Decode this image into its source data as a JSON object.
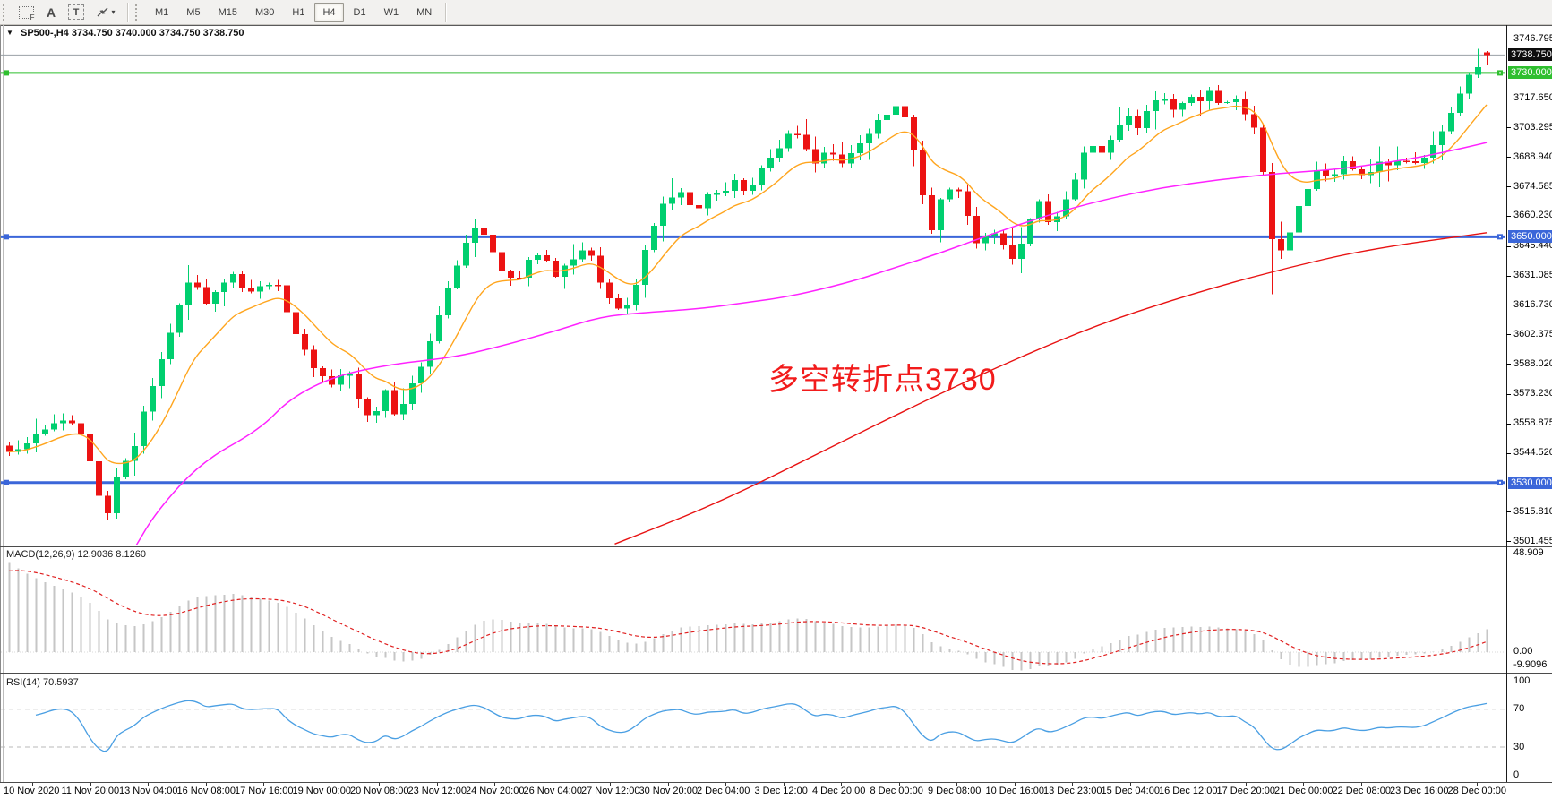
{
  "toolbar": {
    "tools": [
      {
        "id": "grid-f",
        "glyph": "F",
        "name": "grid-f-icon"
      },
      {
        "id": "label-a",
        "glyph": "A",
        "name": "text-label-icon"
      },
      {
        "id": "text-t",
        "glyph": "T",
        "name": "text-box-icon"
      },
      {
        "id": "arrows",
        "glyph": "▾",
        "name": "arrows-tool-icon"
      }
    ],
    "timeframes": [
      "M1",
      "M5",
      "M15",
      "M30",
      "H1",
      "H4",
      "D1",
      "W1",
      "MN"
    ],
    "active_timeframe": "H4"
  },
  "chart": {
    "dropdown_glyph": "▼",
    "title": "SP500-,H4",
    "ohlc_text": "3734.750 3740.000 3734.750 3738.750",
    "annotation": "多空转折点3730",
    "annotation_color": "#f21b1b"
  },
  "price_axis": {
    "ticks": [
      "3746.795",
      "3717.650",
      "3703.295",
      "3688.940",
      "3674.585",
      "3660.230",
      "3645.440",
      "3631.085",
      "3616.730",
      "3602.375",
      "3588.020",
      "3573.230",
      "3558.875",
      "3544.520",
      "3515.810",
      "3501.455"
    ],
    "tags": [
      {
        "label": "3738.750",
        "value": 3738.75,
        "color": "#0d0d0d"
      },
      {
        "label": "3730.000",
        "value": 3730.0,
        "color": "#2fbf2f"
      },
      {
        "label": "3650.000",
        "value": 3650.0,
        "color": "#3b66d9"
      },
      {
        "label": "3530.000",
        "value": 3530.0,
        "color": "#3b66d9"
      }
    ]
  },
  "time_axis": {
    "labels": [
      "10 Nov 2020",
      "11 Nov 20:00",
      "13 Nov 04:00",
      "16 Nov 08:00",
      "17 Nov 16:00",
      "19 Nov 00:00",
      "20 Nov 08:00",
      "23 Nov 12:00",
      "24 Nov 20:00",
      "26 Nov 04:00",
      "27 Nov 12:00",
      "30 Nov 20:00",
      "2 Dec 04:00",
      "3 Dec 12:00",
      "4 Dec 20:00",
      "8 Dec 00:00",
      "9 Dec 08:00",
      "10 Dec 16:00",
      "13 Dec 23:00",
      "15 Dec 04:00",
      "16 Dec 12:00",
      "17 Dec 20:00",
      "21 Dec 00:00",
      "22 Dec 08:00",
      "23 Dec 16:00",
      "28 Dec 00:00"
    ]
  },
  "indicators": {
    "macd": {
      "name": "MACD(12,26,9)",
      "values": "12.9036 8.1260",
      "axis": [
        "48.909",
        "0.00",
        "-9.9096"
      ],
      "axis_max": 48.909,
      "axis_min": -9.9096
    },
    "rsi": {
      "name": "RSI(14)",
      "value": "70.5937",
      "axis": [
        "100",
        "70",
        "30",
        "0"
      ],
      "levels": [
        70,
        30
      ]
    }
  },
  "chart_data": {
    "type": "candlestick",
    "symbol": "SP500-",
    "timeframe": "H4",
    "current": {
      "open": 3734.75,
      "high": 3740.0,
      "low": 3734.75,
      "close": 3738.75
    },
    "last_price": 3738.75,
    "y_axis_top": 3746.795,
    "y_axis_bottom": 3501.455,
    "candle_count": 166,
    "seed": 20201228,
    "levels": [
      {
        "price": 3730.0,
        "color": "#2fbf2f",
        "width": 2
      },
      {
        "price": 3650.0,
        "color": "#3b66d9",
        "width": 3
      },
      {
        "price": 3530.0,
        "color": "#3b66d9",
        "width": 3
      }
    ],
    "colors": {
      "bull": "#00cf6f",
      "bear": "#ec1313",
      "ma_fast": "#ffa51e",
      "ma_mid": "#ff22ff",
      "ma_slow": "#e81212",
      "macd_hist": "#c6c6c6",
      "macd_signal": "#e02020",
      "rsi_line": "#4a9fe3",
      "bid_line": "#9aa0a6",
      "grid_dash": "#b8b8b8"
    },
    "price_path": [
      [
        0.005,
        3545
      ],
      [
        0.017,
        3552
      ],
      [
        0.03,
        3558
      ],
      [
        0.04,
        3561
      ],
      [
        0.05,
        3552
      ],
      [
        0.063,
        3518
      ],
      [
        0.066,
        3512
      ],
      [
        0.074,
        3535
      ],
      [
        0.083,
        3545
      ],
      [
        0.093,
        3568
      ],
      [
        0.103,
        3590
      ],
      [
        0.113,
        3612
      ],
      [
        0.123,
        3630
      ],
      [
        0.132,
        3618
      ],
      [
        0.142,
        3624
      ],
      [
        0.152,
        3632
      ],
      [
        0.162,
        3622
      ],
      [
        0.172,
        3626
      ],
      [
        0.18,
        3630
      ],
      [
        0.189,
        3612
      ],
      [
        0.199,
        3595
      ],
      [
        0.209,
        3583
      ],
      [
        0.219,
        3578
      ],
      [
        0.228,
        3587
      ],
      [
        0.238,
        3566
      ],
      [
        0.246,
        3562
      ],
      [
        0.255,
        3576
      ],
      [
        0.262,
        3560
      ],
      [
        0.272,
        3576
      ],
      [
        0.281,
        3592
      ],
      [
        0.291,
        3612
      ],
      [
        0.301,
        3632
      ],
      [
        0.31,
        3650
      ],
      [
        0.318,
        3655
      ],
      [
        0.326,
        3644
      ],
      [
        0.334,
        3634
      ],
      [
        0.343,
        3628
      ],
      [
        0.352,
        3638
      ],
      [
        0.361,
        3642
      ],
      [
        0.37,
        3630
      ],
      [
        0.377,
        3636
      ],
      [
        0.386,
        3644
      ],
      [
        0.394,
        3640
      ],
      [
        0.403,
        3622
      ],
      [
        0.412,
        3614
      ],
      [
        0.421,
        3618
      ],
      [
        0.429,
        3640
      ],
      [
        0.437,
        3658
      ],
      [
        0.445,
        3668
      ],
      [
        0.454,
        3672
      ],
      [
        0.464,
        3662
      ],
      [
        0.474,
        3672
      ],
      [
        0.482,
        3668
      ],
      [
        0.491,
        3678
      ],
      [
        0.5,
        3672
      ],
      [
        0.51,
        3683
      ],
      [
        0.52,
        3692
      ],
      [
        0.53,
        3703
      ],
      [
        0.538,
        3695
      ],
      [
        0.546,
        3686
      ],
      [
        0.555,
        3695
      ],
      [
        0.563,
        3684
      ],
      [
        0.573,
        3692
      ],
      [
        0.581,
        3700
      ],
      [
        0.591,
        3708
      ],
      [
        0.599,
        3714
      ],
      [
        0.608,
        3708
      ],
      [
        0.616,
        3680
      ],
      [
        0.623,
        3652
      ],
      [
        0.63,
        3668
      ],
      [
        0.639,
        3676
      ],
      [
        0.648,
        3662
      ],
      [
        0.656,
        3645
      ],
      [
        0.664,
        3655
      ],
      [
        0.672,
        3648
      ],
      [
        0.681,
        3638
      ],
      [
        0.689,
        3655
      ],
      [
        0.697,
        3668
      ],
      [
        0.705,
        3654
      ],
      [
        0.714,
        3668
      ],
      [
        0.722,
        3680
      ],
      [
        0.73,
        3695
      ],
      [
        0.738,
        3690
      ],
      [
        0.747,
        3700
      ],
      [
        0.755,
        3710
      ],
      [
        0.764,
        3704
      ],
      [
        0.772,
        3714
      ],
      [
        0.78,
        3720
      ],
      [
        0.788,
        3712
      ],
      [
        0.797,
        3719
      ],
      [
        0.805,
        3714
      ],
      [
        0.813,
        3721
      ],
      [
        0.821,
        3712
      ],
      [
        0.829,
        3718
      ],
      [
        0.838,
        3708
      ],
      [
        0.846,
        3698
      ],
      [
        0.854,
        3648
      ],
      [
        0.861,
        3642
      ],
      [
        0.869,
        3658
      ],
      [
        0.877,
        3672
      ],
      [
        0.886,
        3683
      ],
      [
        0.894,
        3678
      ],
      [
        0.902,
        3687
      ],
      [
        0.911,
        3682
      ],
      [
        0.919,
        3679
      ],
      [
        0.927,
        3687
      ],
      [
        0.936,
        3684
      ],
      [
        0.944,
        3688
      ],
      [
        0.952,
        3686
      ],
      [
        0.96,
        3692
      ],
      [
        0.968,
        3700
      ],
      [
        0.977,
        3712
      ],
      [
        0.985,
        3724
      ],
      [
        0.992,
        3733
      ],
      [
        1,
        3738.75
      ]
    ],
    "ma_mid_path": [
      [
        0.085,
        3498
      ],
      [
        0.1,
        3516
      ],
      [
        0.13,
        3540
      ],
      [
        0.17,
        3556
      ],
      [
        0.19,
        3571
      ],
      [
        0.22,
        3582
      ],
      [
        0.26,
        3588
      ],
      [
        0.3,
        3591
      ],
      [
        0.33,
        3596
      ],
      [
        0.37,
        3604
      ],
      [
        0.4,
        3611
      ],
      [
        0.43,
        3613
      ],
      [
        0.47,
        3615
      ],
      [
        0.5,
        3618
      ],
      [
        0.53,
        3621
      ],
      [
        0.57,
        3628
      ],
      [
        0.6,
        3635
      ],
      [
        0.63,
        3642
      ],
      [
        0.66,
        3650
      ],
      [
        0.7,
        3660
      ],
      [
        0.74,
        3668
      ],
      [
        0.78,
        3674
      ],
      [
        0.82,
        3678
      ],
      [
        0.86,
        3681
      ],
      [
        0.9,
        3683
      ],
      [
        0.94,
        3687
      ],
      [
        0.97,
        3691
      ],
      [
        1,
        3696
      ]
    ],
    "ma_slow_path": [
      [
        0.41,
        3500
      ],
      [
        0.48,
        3520
      ],
      [
        0.55,
        3545
      ],
      [
        0.62,
        3570
      ],
      [
        0.68,
        3590
      ],
      [
        0.74,
        3608
      ],
      [
        0.8,
        3622
      ],
      [
        0.86,
        3634
      ],
      [
        0.92,
        3644
      ],
      [
        1,
        3652
      ]
    ]
  }
}
